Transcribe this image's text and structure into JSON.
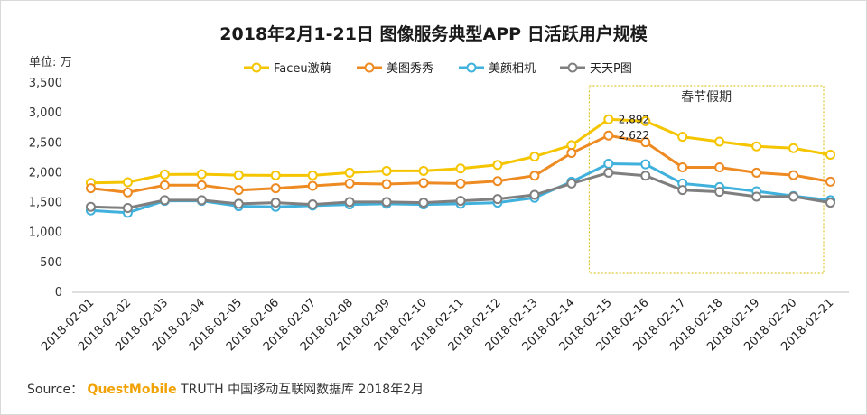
{
  "chart_data": {
    "type": "line",
    "title": "2018年2月1-21日 图像服务典型APP 日活跃用户规模",
    "ylabel": "单位: 万",
    "xlabel": "",
    "ylim": [
      0,
      3500
    ],
    "yticks": [
      0,
      500,
      1000,
      1500,
      2000,
      2500,
      3000,
      3500
    ],
    "ytick_labels": [
      "0",
      "500",
      "1,000",
      "1,500",
      "2,000",
      "2,500",
      "3,000",
      "3,500"
    ],
    "grid": false,
    "legend_position": "top-center",
    "categories": [
      "2018-02-01",
      "2018-02-02",
      "2018-02-03",
      "2018-02-04",
      "2018-02-05",
      "2018-02-06",
      "2018-02-07",
      "2018-02-08",
      "2018-02-09",
      "2018-02-10",
      "2018-02-11",
      "2018-02-12",
      "2018-02-13",
      "2018-02-14",
      "2018-02-15",
      "2018-02-16",
      "2018-02-17",
      "2018-02-18",
      "2018-02-19",
      "2018-02-20",
      "2018-02-21"
    ],
    "series": [
      {
        "name": "Faceu激萌",
        "color": "#f5c500",
        "values": [
          1830,
          1840,
          1970,
          1975,
          1960,
          1955,
          1955,
          2000,
          2030,
          2030,
          2070,
          2130,
          2270,
          2460,
          2892,
          2860,
          2600,
          2520,
          2440,
          2410,
          2300
        ]
      },
      {
        "name": "美图秀秀",
        "color": "#ee8a22",
        "values": [
          1740,
          1670,
          1790,
          1790,
          1710,
          1740,
          1780,
          1820,
          1810,
          1830,
          1820,
          1860,
          1950,
          2330,
          2622,
          2510,
          2090,
          2090,
          2000,
          1960,
          1850
        ]
      },
      {
        "name": "美颜相机",
        "color": "#3fb1dc",
        "values": [
          1370,
          1330,
          1530,
          1530,
          1440,
          1430,
          1450,
          1470,
          1480,
          1470,
          1480,
          1500,
          1580,
          1850,
          2150,
          2140,
          1820,
          1760,
          1690,
          1610,
          1540
        ]
      },
      {
        "name": "天天P图",
        "color": "#7f7f7f",
        "values": [
          1430,
          1410,
          1540,
          1540,
          1480,
          1500,
          1470,
          1510,
          1510,
          1500,
          1530,
          1560,
          1630,
          1820,
          2000,
          1950,
          1710,
          1680,
          1600,
          1600,
          1500
        ]
      }
    ],
    "annotations": [
      {
        "text": "春节假期",
        "from_category": "2018-02-15",
        "to_category": "2018-02-21"
      },
      {
        "text": "2,892",
        "series": "Faceu激萌",
        "category": "2018-02-15"
      },
      {
        "text": "2,622",
        "series": "美图秀秀",
        "category": "2018-02-15"
      }
    ]
  },
  "source": {
    "prefix": "Source：",
    "brand": "QuestMobile",
    "text": "TRUTH 中国移动互联网数据库 2018年2月"
  }
}
